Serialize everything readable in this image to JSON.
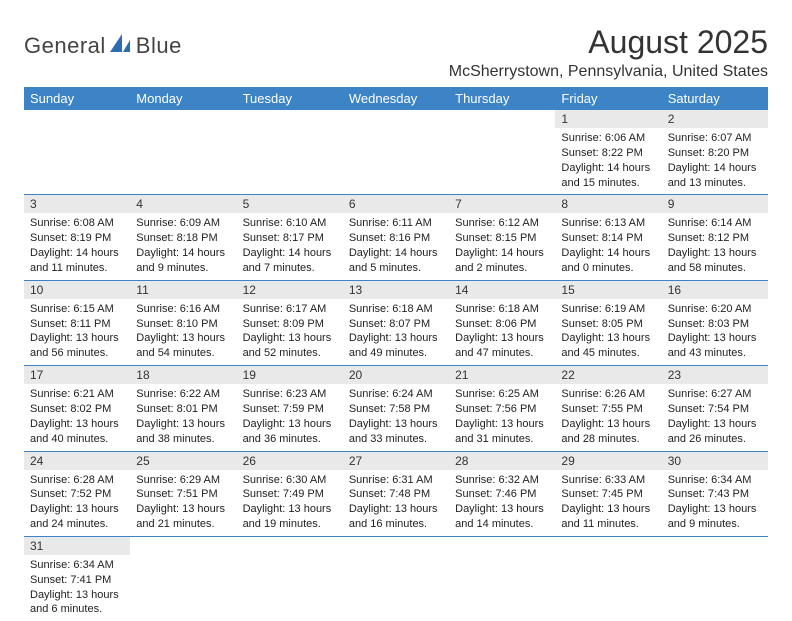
{
  "logo": {
    "text1": "General",
    "text2": "Blue"
  },
  "title": "August 2025",
  "location": "McSherrystown, Pennsylvania, United States",
  "colors": {
    "header_bg": "#3d84c6",
    "header_fg": "#ffffff",
    "daynum_bg": "#e9e9e9",
    "border": "#3d84c6",
    "page_bg": "#ffffff",
    "text": "#222222",
    "logo_sail": "#2a6db0"
  },
  "fonts": {
    "title_size": 32,
    "location_size": 16,
    "header_size": 13,
    "body_size": 11
  },
  "days": [
    "Sunday",
    "Monday",
    "Tuesday",
    "Wednesday",
    "Thursday",
    "Friday",
    "Saturday"
  ],
  "weeks": [
    [
      null,
      null,
      null,
      null,
      null,
      {
        "n": "1",
        "sr": "Sunrise: 6:06 AM",
        "ss": "Sunset: 8:22 PM",
        "d1": "Daylight: 14 hours",
        "d2": "and 15 minutes."
      },
      {
        "n": "2",
        "sr": "Sunrise: 6:07 AM",
        "ss": "Sunset: 8:20 PM",
        "d1": "Daylight: 14 hours",
        "d2": "and 13 minutes."
      }
    ],
    [
      {
        "n": "3",
        "sr": "Sunrise: 6:08 AM",
        "ss": "Sunset: 8:19 PM",
        "d1": "Daylight: 14 hours",
        "d2": "and 11 minutes."
      },
      {
        "n": "4",
        "sr": "Sunrise: 6:09 AM",
        "ss": "Sunset: 8:18 PM",
        "d1": "Daylight: 14 hours",
        "d2": "and 9 minutes."
      },
      {
        "n": "5",
        "sr": "Sunrise: 6:10 AM",
        "ss": "Sunset: 8:17 PM",
        "d1": "Daylight: 14 hours",
        "d2": "and 7 minutes."
      },
      {
        "n": "6",
        "sr": "Sunrise: 6:11 AM",
        "ss": "Sunset: 8:16 PM",
        "d1": "Daylight: 14 hours",
        "d2": "and 5 minutes."
      },
      {
        "n": "7",
        "sr": "Sunrise: 6:12 AM",
        "ss": "Sunset: 8:15 PM",
        "d1": "Daylight: 14 hours",
        "d2": "and 2 minutes."
      },
      {
        "n": "8",
        "sr": "Sunrise: 6:13 AM",
        "ss": "Sunset: 8:14 PM",
        "d1": "Daylight: 14 hours",
        "d2": "and 0 minutes."
      },
      {
        "n": "9",
        "sr": "Sunrise: 6:14 AM",
        "ss": "Sunset: 8:12 PM",
        "d1": "Daylight: 13 hours",
        "d2": "and 58 minutes."
      }
    ],
    [
      {
        "n": "10",
        "sr": "Sunrise: 6:15 AM",
        "ss": "Sunset: 8:11 PM",
        "d1": "Daylight: 13 hours",
        "d2": "and 56 minutes."
      },
      {
        "n": "11",
        "sr": "Sunrise: 6:16 AM",
        "ss": "Sunset: 8:10 PM",
        "d1": "Daylight: 13 hours",
        "d2": "and 54 minutes."
      },
      {
        "n": "12",
        "sr": "Sunrise: 6:17 AM",
        "ss": "Sunset: 8:09 PM",
        "d1": "Daylight: 13 hours",
        "d2": "and 52 minutes."
      },
      {
        "n": "13",
        "sr": "Sunrise: 6:18 AM",
        "ss": "Sunset: 8:07 PM",
        "d1": "Daylight: 13 hours",
        "d2": "and 49 minutes."
      },
      {
        "n": "14",
        "sr": "Sunrise: 6:18 AM",
        "ss": "Sunset: 8:06 PM",
        "d1": "Daylight: 13 hours",
        "d2": "and 47 minutes."
      },
      {
        "n": "15",
        "sr": "Sunrise: 6:19 AM",
        "ss": "Sunset: 8:05 PM",
        "d1": "Daylight: 13 hours",
        "d2": "and 45 minutes."
      },
      {
        "n": "16",
        "sr": "Sunrise: 6:20 AM",
        "ss": "Sunset: 8:03 PM",
        "d1": "Daylight: 13 hours",
        "d2": "and 43 minutes."
      }
    ],
    [
      {
        "n": "17",
        "sr": "Sunrise: 6:21 AM",
        "ss": "Sunset: 8:02 PM",
        "d1": "Daylight: 13 hours",
        "d2": "and 40 minutes."
      },
      {
        "n": "18",
        "sr": "Sunrise: 6:22 AM",
        "ss": "Sunset: 8:01 PM",
        "d1": "Daylight: 13 hours",
        "d2": "and 38 minutes."
      },
      {
        "n": "19",
        "sr": "Sunrise: 6:23 AM",
        "ss": "Sunset: 7:59 PM",
        "d1": "Daylight: 13 hours",
        "d2": "and 36 minutes."
      },
      {
        "n": "20",
        "sr": "Sunrise: 6:24 AM",
        "ss": "Sunset: 7:58 PM",
        "d1": "Daylight: 13 hours",
        "d2": "and 33 minutes."
      },
      {
        "n": "21",
        "sr": "Sunrise: 6:25 AM",
        "ss": "Sunset: 7:56 PM",
        "d1": "Daylight: 13 hours",
        "d2": "and 31 minutes."
      },
      {
        "n": "22",
        "sr": "Sunrise: 6:26 AM",
        "ss": "Sunset: 7:55 PM",
        "d1": "Daylight: 13 hours",
        "d2": "and 28 minutes."
      },
      {
        "n": "23",
        "sr": "Sunrise: 6:27 AM",
        "ss": "Sunset: 7:54 PM",
        "d1": "Daylight: 13 hours",
        "d2": "and 26 minutes."
      }
    ],
    [
      {
        "n": "24",
        "sr": "Sunrise: 6:28 AM",
        "ss": "Sunset: 7:52 PM",
        "d1": "Daylight: 13 hours",
        "d2": "and 24 minutes."
      },
      {
        "n": "25",
        "sr": "Sunrise: 6:29 AM",
        "ss": "Sunset: 7:51 PM",
        "d1": "Daylight: 13 hours",
        "d2": "and 21 minutes."
      },
      {
        "n": "26",
        "sr": "Sunrise: 6:30 AM",
        "ss": "Sunset: 7:49 PM",
        "d1": "Daylight: 13 hours",
        "d2": "and 19 minutes."
      },
      {
        "n": "27",
        "sr": "Sunrise: 6:31 AM",
        "ss": "Sunset: 7:48 PM",
        "d1": "Daylight: 13 hours",
        "d2": "and 16 minutes."
      },
      {
        "n": "28",
        "sr": "Sunrise: 6:32 AM",
        "ss": "Sunset: 7:46 PM",
        "d1": "Daylight: 13 hours",
        "d2": "and 14 minutes."
      },
      {
        "n": "29",
        "sr": "Sunrise: 6:33 AM",
        "ss": "Sunset: 7:45 PM",
        "d1": "Daylight: 13 hours",
        "d2": "and 11 minutes."
      },
      {
        "n": "30",
        "sr": "Sunrise: 6:34 AM",
        "ss": "Sunset: 7:43 PM",
        "d1": "Daylight: 13 hours",
        "d2": "and 9 minutes."
      }
    ],
    [
      {
        "n": "31",
        "sr": "Sunrise: 6:34 AM",
        "ss": "Sunset: 7:41 PM",
        "d1": "Daylight: 13 hours",
        "d2": "and 6 minutes."
      },
      null,
      null,
      null,
      null,
      null,
      null
    ]
  ]
}
